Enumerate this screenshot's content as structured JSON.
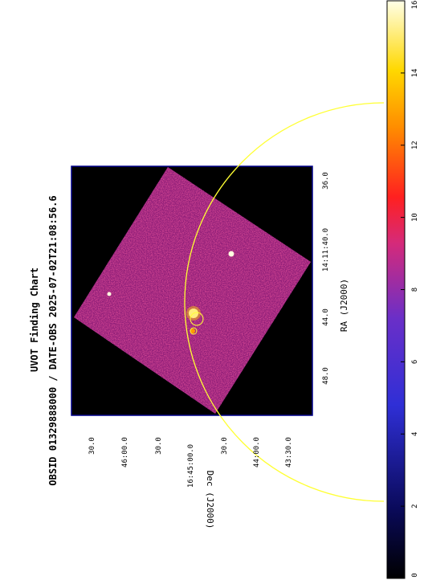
{
  "chart": {
    "title": "UVOT Finding Chart",
    "subtitle": "OBSID 01329888000 / DATE-OBS 2025-07-02T21:08:56.6",
    "ra_label": "RA (J2000)",
    "dec_label": "Dec (J2000)"
  },
  "ra_ticks": [
    "48.0",
    "44.0",
    "14:11:40.0",
    "36.0"
  ],
  "dec_ticks": [
    "30.0",
    "46:00.0",
    "30.0",
    "16:45:00.0",
    "30.0",
    "44:00.0",
    "43:30.0"
  ],
  "colorbar": {
    "ticks": [
      "0",
      "2",
      "4",
      "6",
      "8",
      "10",
      "12",
      "14",
      "16"
    ],
    "min": 0,
    "max": 16
  },
  "colors": {
    "frame": "#00008b",
    "circle": "#ffff33",
    "background": "#000000"
  }
}
